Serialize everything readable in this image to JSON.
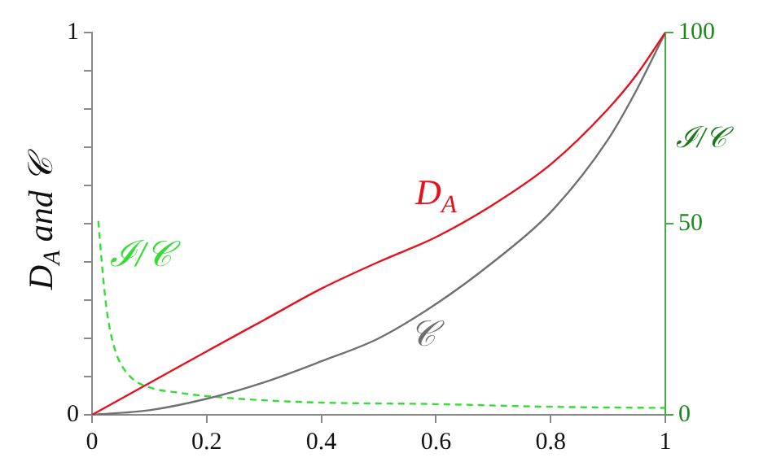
{
  "chart_data": {
    "type": "line",
    "ylabel": "D$_{A}$ and 𝒞",
    "y2label": "ℐ/𝒞",
    "xlim": [
      0,
      1
    ],
    "xticks": [
      0,
      0.2,
      0.4,
      0.6,
      0.8,
      1
    ],
    "ylim": [
      0,
      1
    ],
    "yticks": [
      0,
      {
        "value": 0.1,
        "label": null
      },
      {
        "value": 0.2,
        "label": null
      },
      {
        "value": 0.3,
        "label": null
      },
      {
        "value": 0.4,
        "label": null
      },
      {
        "value": 0.5,
        "label": null
      },
      {
        "value": 0.6,
        "label": null
      },
      {
        "value": 0.7,
        "label": null
      },
      {
        "value": 0.8,
        "label": null
      },
      {
        "value": 0.9,
        "label": null
      },
      1
    ],
    "y2lim": [
      0,
      100
    ],
    "y2ticks": [
      0,
      50,
      100
    ],
    "grid": false,
    "legend": false,
    "marker": "none",
    "series": [
      {
        "name": "D$_{A}$",
        "color": "#e8101c",
        "line_style": "solid",
        "x": [
          0,
          0.1,
          0.2,
          0.3,
          0.4,
          0.5,
          0.6,
          0.7,
          0.8,
          0.9,
          0.95,
          1
        ],
        "values": [
          0,
          0.083,
          0.166,
          0.248,
          0.33,
          0.4,
          0.465,
          0.55,
          0.655,
          0.8,
          0.89,
          1
        ]
      },
      {
        "name": "𝒞",
        "color": "#707070",
        "line_style": "solid",
        "x": [
          0,
          0.1,
          0.2,
          0.3,
          0.4,
          0.5,
          0.6,
          0.7,
          0.8,
          0.9,
          0.95,
          1
        ],
        "values": [
          0,
          0.012,
          0.042,
          0.085,
          0.14,
          0.2,
          0.29,
          0.4,
          0.53,
          0.72,
          0.85,
          1
        ]
      },
      {
        "name": "ℐ/𝒞",
        "color": "#33dd33",
        "line_style": "dashed",
        "axis": "y2",
        "x": [
          0.011,
          0.02,
          0.027,
          0.04,
          0.05,
          0.07,
          0.104,
          0.15,
          0.2,
          0.3,
          0.4,
          0.6,
          0.8,
          1
        ],
        "values": [
          50.7,
          35,
          26,
          17,
          13.4,
          9.5,
          7,
          5.8,
          4.9,
          3.8,
          3.2,
          2.8,
          2.1,
          1.8
        ]
      }
    ]
  }
}
